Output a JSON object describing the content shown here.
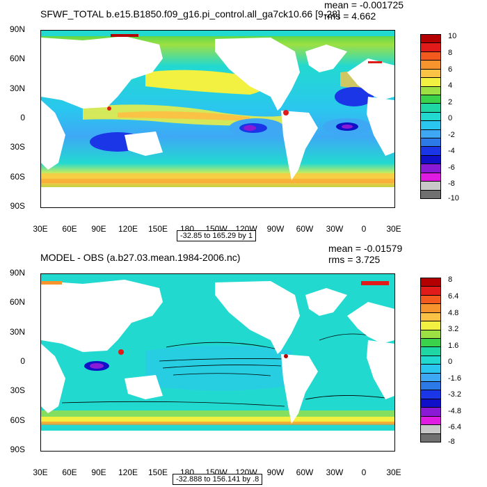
{
  "panels": [
    {
      "title": "SFWF_TOTAL b.e15.B1850.f09_g16.pi_control.all_ga7ck10.66 [9-28]",
      "mean": "mean = -0.001725",
      "rms": "rms = 4.662",
      "range": "-32.85 to 165.29 by 1",
      "lat_labels": [
        "90N",
        "60N",
        "30N",
        "0",
        "30S",
        "60S",
        "90S"
      ],
      "lon_labels": [
        "30E",
        "60E",
        "90E",
        "120E",
        "150E",
        "180",
        "150W",
        "120W",
        "90W",
        "60W",
        "30W",
        "0",
        "30E"
      ],
      "colorbar": {
        "labels": [
          "10",
          "8",
          "6",
          "4",
          "2",
          "0",
          "-2",
          "-4",
          "-6",
          "-8",
          "-10"
        ],
        "colors": [
          "#b40000",
          "#e11a1a",
          "#f25a1e",
          "#f7942e",
          "#fac346",
          "#f2f040",
          "#9de043",
          "#3ad24a",
          "#1fd7a4",
          "#22d9d0",
          "#2bc6ef",
          "#3ea8f5",
          "#2b7ae8",
          "#1a36e6",
          "#1010c8",
          "#8a1ad6",
          "#e11ce2",
          "#c8c8c8",
          "#707070"
        ]
      }
    },
    {
      "title": "MODEL - OBS (a.b27.03.mean.1984-2006.nc)",
      "mean": "mean = -0.01579",
      "rms": "rms = 3.725",
      "range": "-32.888 to 156.141 by .8",
      "lat_labels": [
        "90N",
        "60N",
        "30N",
        "0",
        "30S",
        "60S",
        "90S"
      ],
      "lon_labels": [
        "30E",
        "60E",
        "90E",
        "120E",
        "150E",
        "180",
        "150W",
        "120W",
        "90W",
        "60W",
        "30W",
        "0",
        "30E"
      ],
      "colorbar": {
        "labels": [
          "8",
          "6.4",
          "4.8",
          "3.2",
          "1.6",
          "0",
          "-1.6",
          "-3.2",
          "-4.8",
          "-6.4",
          "-8"
        ],
        "colors": [
          "#b40000",
          "#e11a1a",
          "#f25a1e",
          "#f7942e",
          "#fac346",
          "#f2f040",
          "#9de043",
          "#3ad24a",
          "#1fd7a4",
          "#22d9d0",
          "#2bc6ef",
          "#3ea8f5",
          "#2b7ae8",
          "#1a36e6",
          "#1010c8",
          "#8a1ad6",
          "#e11ce2",
          "#c8c8c8",
          "#707070"
        ]
      }
    }
  ]
}
